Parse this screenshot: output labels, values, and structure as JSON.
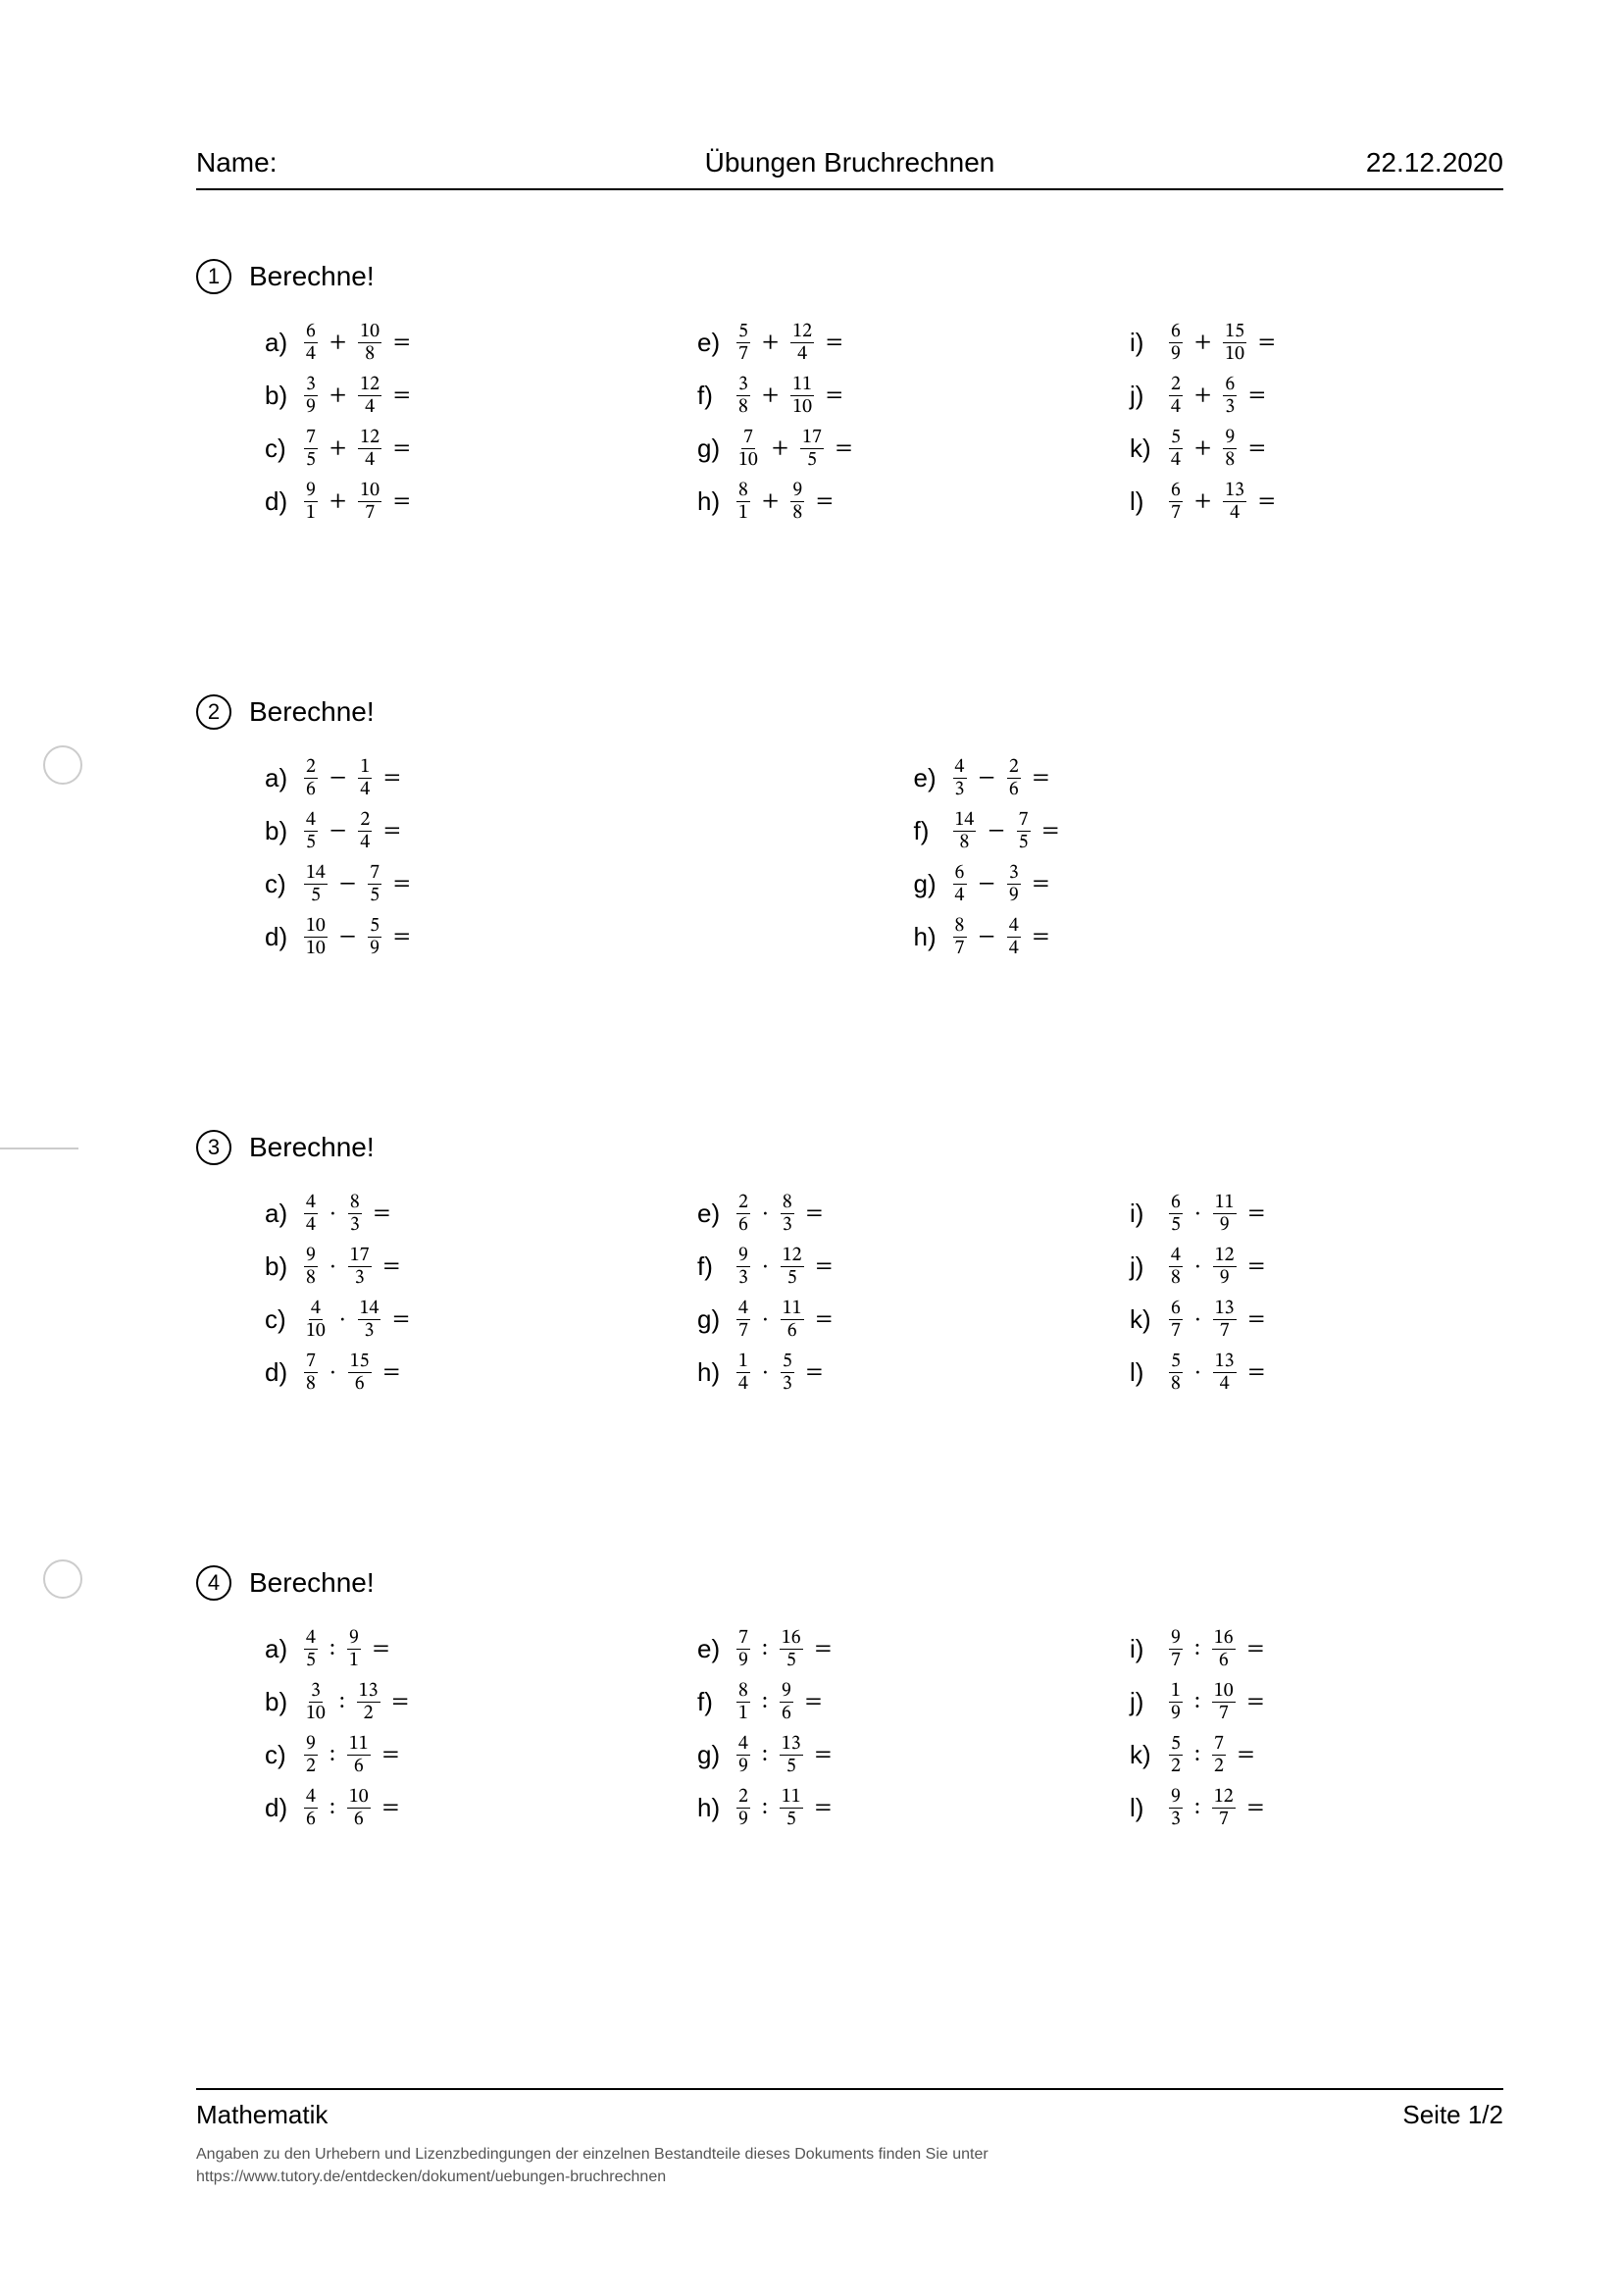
{
  "header": {
    "name_label": "Name:",
    "title": "Übungen Bruchrechnen",
    "date": "22.12.2020"
  },
  "operators": {
    "add": "+",
    "sub": "−",
    "mul": "·",
    "div": ":"
  },
  "equals": "=",
  "exercises": [
    {
      "num": "1",
      "title": "Berechne!",
      "op": "add",
      "cols": 3,
      "items": [
        {
          "l": "a)",
          "a": [
            6,
            4
          ],
          "b": [
            10,
            8
          ]
        },
        {
          "l": "b)",
          "a": [
            3,
            9
          ],
          "b": [
            12,
            4
          ]
        },
        {
          "l": "c)",
          "a": [
            7,
            5
          ],
          "b": [
            12,
            4
          ]
        },
        {
          "l": "d)",
          "a": [
            9,
            1
          ],
          "b": [
            10,
            7
          ]
        },
        {
          "l": "e)",
          "a": [
            5,
            7
          ],
          "b": [
            12,
            4
          ]
        },
        {
          "l": "f)",
          "a": [
            3,
            8
          ],
          "b": [
            11,
            10
          ]
        },
        {
          "l": "g)",
          "a": [
            7,
            10
          ],
          "b": [
            17,
            5
          ]
        },
        {
          "l": "h)",
          "a": [
            8,
            1
          ],
          "b": [
            9,
            8
          ]
        },
        {
          "l": "i)",
          "a": [
            6,
            9
          ],
          "b": [
            15,
            10
          ]
        },
        {
          "l": "j)",
          "a": [
            2,
            4
          ],
          "b": [
            6,
            3
          ]
        },
        {
          "l": "k)",
          "a": [
            5,
            4
          ],
          "b": [
            9,
            8
          ]
        },
        {
          "l": "l)",
          "a": [
            6,
            7
          ],
          "b": [
            13,
            4
          ]
        }
      ]
    },
    {
      "num": "2",
      "title": "Berechne!",
      "op": "sub",
      "cols": 2,
      "items": [
        {
          "l": "a)",
          "a": [
            2,
            6
          ],
          "b": [
            1,
            4
          ]
        },
        {
          "l": "b)",
          "a": [
            4,
            5
          ],
          "b": [
            2,
            4
          ]
        },
        {
          "l": "c)",
          "a": [
            14,
            5
          ],
          "b": [
            7,
            5
          ]
        },
        {
          "l": "d)",
          "a": [
            10,
            10
          ],
          "b": [
            5,
            9
          ]
        },
        {
          "l": "e)",
          "a": [
            4,
            3
          ],
          "b": [
            2,
            6
          ]
        },
        {
          "l": "f)",
          "a": [
            14,
            8
          ],
          "b": [
            7,
            5
          ]
        },
        {
          "l": "g)",
          "a": [
            6,
            4
          ],
          "b": [
            3,
            9
          ]
        },
        {
          "l": "h)",
          "a": [
            8,
            7
          ],
          "b": [
            4,
            4
          ]
        }
      ]
    },
    {
      "num": "3",
      "title": "Berechne!",
      "op": "mul",
      "cols": 3,
      "items": [
        {
          "l": "a)",
          "a": [
            4,
            4
          ],
          "b": [
            8,
            3
          ]
        },
        {
          "l": "b)",
          "a": [
            9,
            8
          ],
          "b": [
            17,
            3
          ]
        },
        {
          "l": "c)",
          "a": [
            4,
            10
          ],
          "b": [
            14,
            3
          ]
        },
        {
          "l": "d)",
          "a": [
            7,
            8
          ],
          "b": [
            15,
            6
          ]
        },
        {
          "l": "e)",
          "a": [
            2,
            6
          ],
          "b": [
            8,
            3
          ]
        },
        {
          "l": "f)",
          "a": [
            9,
            3
          ],
          "b": [
            12,
            5
          ]
        },
        {
          "l": "g)",
          "a": [
            4,
            7
          ],
          "b": [
            11,
            6
          ]
        },
        {
          "l": "h)",
          "a": [
            1,
            4
          ],
          "b": [
            5,
            3
          ]
        },
        {
          "l": "i)",
          "a": [
            6,
            5
          ],
          "b": [
            11,
            9
          ]
        },
        {
          "l": "j)",
          "a": [
            4,
            8
          ],
          "b": [
            12,
            9
          ]
        },
        {
          "l": "k)",
          "a": [
            6,
            7
          ],
          "b": [
            13,
            7
          ]
        },
        {
          "l": "l)",
          "a": [
            5,
            8
          ],
          "b": [
            13,
            4
          ]
        }
      ]
    },
    {
      "num": "4",
      "title": "Berechne!",
      "op": "div",
      "cols": 3,
      "items": [
        {
          "l": "a)",
          "a": [
            4,
            5
          ],
          "b": [
            9,
            1
          ]
        },
        {
          "l": "b)",
          "a": [
            3,
            10
          ],
          "b": [
            13,
            2
          ]
        },
        {
          "l": "c)",
          "a": [
            9,
            2
          ],
          "b": [
            11,
            6
          ]
        },
        {
          "l": "d)",
          "a": [
            4,
            6
          ],
          "b": [
            10,
            6
          ]
        },
        {
          "l": "e)",
          "a": [
            7,
            9
          ],
          "b": [
            16,
            5
          ]
        },
        {
          "l": "f)",
          "a": [
            8,
            1
          ],
          "b": [
            9,
            6
          ]
        },
        {
          "l": "g)",
          "a": [
            4,
            9
          ],
          "b": [
            13,
            5
          ]
        },
        {
          "l": "h)",
          "a": [
            2,
            9
          ],
          "b": [
            11,
            5
          ]
        },
        {
          "l": "i)",
          "a": [
            9,
            7
          ],
          "b": [
            16,
            6
          ]
        },
        {
          "l": "j)",
          "a": [
            1,
            9
          ],
          "b": [
            10,
            7
          ]
        },
        {
          "l": "k)",
          "a": [
            5,
            2
          ],
          "b": [
            7,
            2
          ]
        },
        {
          "l": "l)",
          "a": [
            9,
            3
          ],
          "b": [
            12,
            7
          ]
        }
      ]
    }
  ],
  "footer": {
    "subject": "Mathematik",
    "page": "Seite 1/2",
    "meta1": "Angaben zu den Urhebern und Lizenzbedingungen der einzelnen Bestandteile dieses Dokuments finden Sie unter",
    "meta2": "https://www.tutory.de/entdecken/dokument/uebungen-bruchrechnen"
  }
}
